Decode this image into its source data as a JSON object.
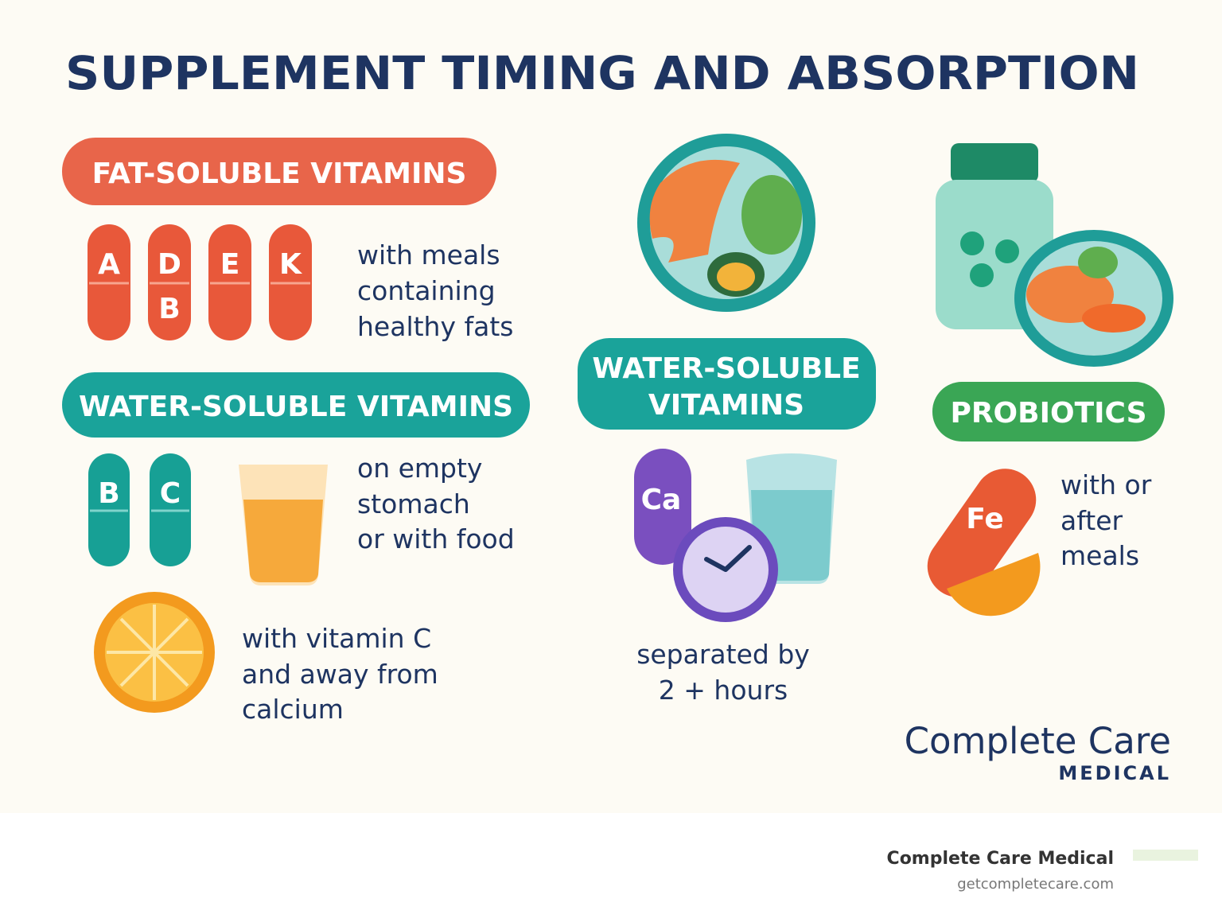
{
  "title": "SUPPLEMENT TIMING AND ABSORPTION",
  "fat_soluble": {
    "badge": "FAT-SOLUBLE VITAMINS",
    "pills": [
      "A",
      "D",
      "E",
      "K"
    ],
    "pill_extra": "B",
    "caption": [
      "with meals",
      "containing",
      "healthy fats"
    ]
  },
  "water_soluble": {
    "badge": "WATER-SOLUBLE VITAMINS",
    "pills": [
      "B",
      "C"
    ],
    "caption": [
      "on empty",
      "stomach",
      "or with food"
    ]
  },
  "iron": {
    "caption": [
      "with vitamin C",
      "and away from",
      "calcium"
    ]
  },
  "middle": {
    "badge": [
      "WATER-SOLUBLE",
      "VITAMINS"
    ],
    "pill": "Ca",
    "caption": [
      "separated by",
      "2 + hours"
    ]
  },
  "probiotics": {
    "badge": "PROBIOTICS",
    "pill": "Fe",
    "caption": [
      "with or",
      "after",
      "meals"
    ]
  },
  "brand": {
    "name": "Complete Care",
    "sub": "MEDICAL"
  },
  "footer": {
    "name": "Complete Care Medical",
    "url": "getcompletecare.com"
  }
}
